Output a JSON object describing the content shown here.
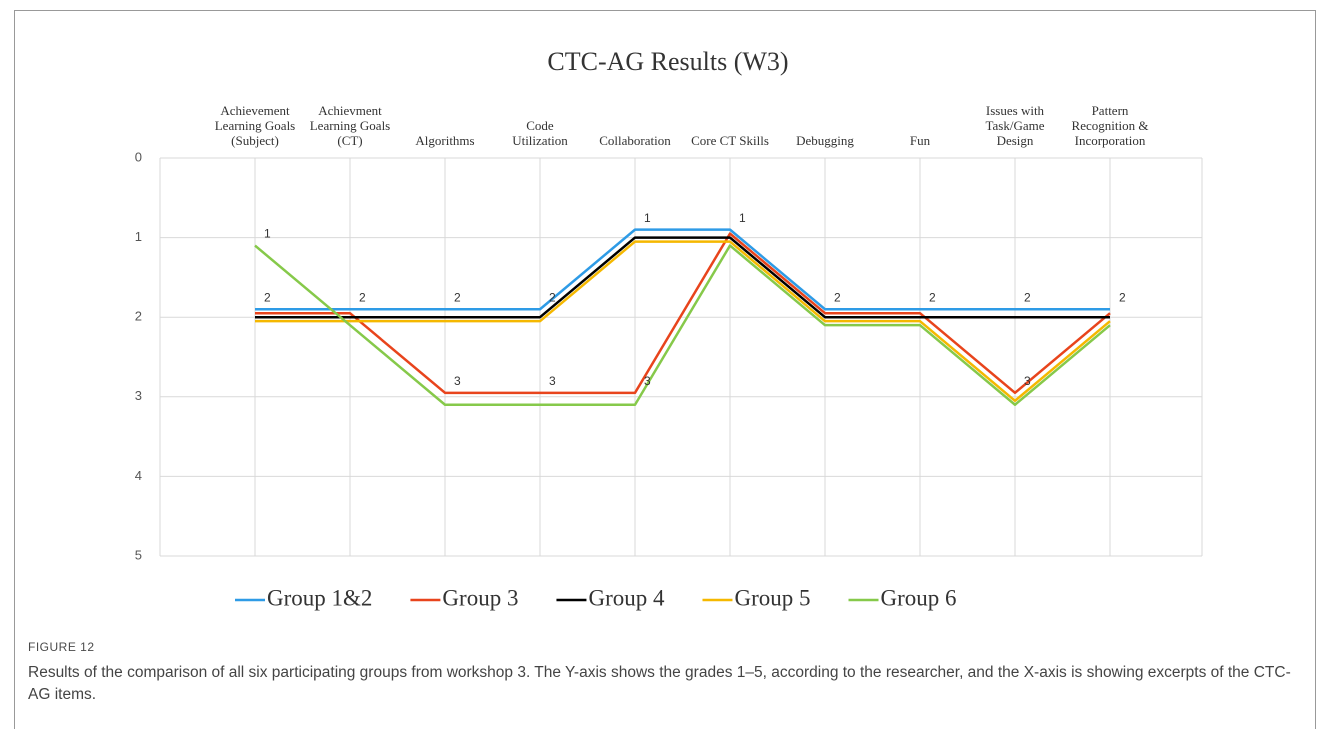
{
  "chart_data": {
    "type": "line",
    "title": "CTC-AG Results (W3)",
    "categories": [
      "Achievement Learning Goals (Subject)",
      "Achievment Learning Goals (CT)",
      "Algorithms",
      "Code Utilization",
      "Collaboration",
      "Core CT Skills",
      "Debugging",
      "Fun",
      "Issues with Task/Game Design",
      "Pattern Recognition & Incorporation"
    ],
    "series": [
      {
        "name": "Group 1&2",
        "color": "#2e9be6",
        "values": [
          1.9,
          1.9,
          1.9,
          1.9,
          0.9,
          0.9,
          1.9,
          1.9,
          1.9,
          1.9
        ],
        "value_labels": [
          "2",
          "2",
          "2",
          "2",
          "1",
          "1",
          "2",
          "2",
          "2",
          "2"
        ]
      },
      {
        "name": "Group 3",
        "color": "#e8441c",
        "values": [
          1.95,
          1.95,
          2.95,
          2.95,
          2.95,
          0.95,
          1.95,
          1.95,
          2.95,
          1.95
        ],
        "value_labels": [
          null,
          null,
          "3",
          "3",
          "3",
          null,
          null,
          null,
          "3",
          null
        ]
      },
      {
        "name": "Group 4",
        "color": "#000000",
        "values": [
          2,
          2,
          2,
          2,
          1,
          1,
          2,
          2,
          2,
          2
        ]
      },
      {
        "name": "Group 5",
        "color": "#f5b800",
        "values": [
          2.05,
          2.05,
          2.05,
          2.05,
          1.05,
          1.05,
          2.05,
          2.05,
          3.05,
          2.05
        ]
      },
      {
        "name": "Group 6",
        "color": "#86c94a",
        "values": [
          1.1,
          2.1,
          3.1,
          3.1,
          3.1,
          1.1,
          2.1,
          2.1,
          3.1,
          2.1
        ],
        "value_labels": [
          "1",
          null,
          null,
          null,
          null,
          null,
          null,
          null,
          null,
          null
        ]
      }
    ],
    "ylim": [
      0,
      5
    ],
    "yticks": [
      0,
      1,
      2,
      3,
      4,
      5
    ],
    "y_reversed": true,
    "grid": true,
    "legend": "bottom"
  },
  "figure": {
    "label": "FIGURE 12",
    "caption": "Results of the comparison of all six participating groups from workshop 3. The Y-axis shows the grades 1–5, according to the researcher, and the X-axis is showing excerpts of the CTC-AG items."
  }
}
